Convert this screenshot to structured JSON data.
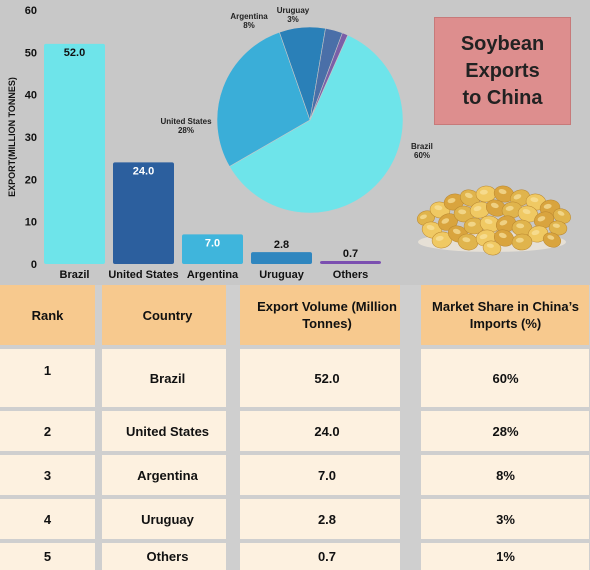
{
  "title": "Soybean\nExports\nto China",
  "chart_data": [
    {
      "type": "bar",
      "ylabel": "EXPORT(MILLION TONNES)",
      "ylim": [
        0,
        60
      ],
      "yticks": [
        0,
        10,
        20,
        30,
        40,
        50,
        60
      ],
      "categories": [
        "Brazil",
        "United States",
        "Argentina",
        "Uruguay",
        "Others"
      ],
      "values": [
        52.0,
        24.0,
        7.0,
        2.8,
        0.7
      ],
      "value_labels": [
        "52.0",
        "24.0",
        "7.0",
        "2.8",
        "0.7"
      ],
      "colors": [
        "#6ee4ea",
        "#2c5f9e",
        "#3fb5dc",
        "#2f86bf",
        "#7b4fb0"
      ],
      "label_colors": [
        "#111111",
        "#ffffff",
        "#ffffff",
        "#111111",
        "#111111"
      ]
    },
    {
      "type": "pie",
      "labels": [
        "Brazil",
        "United States",
        "Argentina",
        "Uruguay",
        "Others"
      ],
      "values": [
        60,
        28,
        8,
        3,
        1
      ],
      "pct_labels": [
        "60%",
        "28%",
        "8%",
        "3%",
        ""
      ],
      "colors": [
        "#6ee4ea",
        "#3aaed8",
        "#2a80b8",
        "#4a6fa8",
        "#7a5fa8"
      ]
    }
  ],
  "table": {
    "headers": [
      "Rank",
      "Country",
      "Export Volume (Million Tonnes)",
      "Market Share in China’s Imports (%)"
    ],
    "rows": [
      [
        "1",
        "Brazil",
        "52.0",
        "60%"
      ],
      [
        "2",
        "United States",
        "24.0",
        "28%"
      ],
      [
        "3",
        "Argentina",
        "7.0",
        "8%"
      ],
      [
        "4",
        "Uruguay",
        "2.8",
        "3%"
      ],
      [
        "5",
        "Others",
        "0.7",
        "1%"
      ]
    ]
  },
  "colors": {
    "top_background": "#c8c8c8",
    "title_box": "#dd8e8e",
    "header_cell": "#f7c98e",
    "body_cell": "#fdf1e0"
  }
}
